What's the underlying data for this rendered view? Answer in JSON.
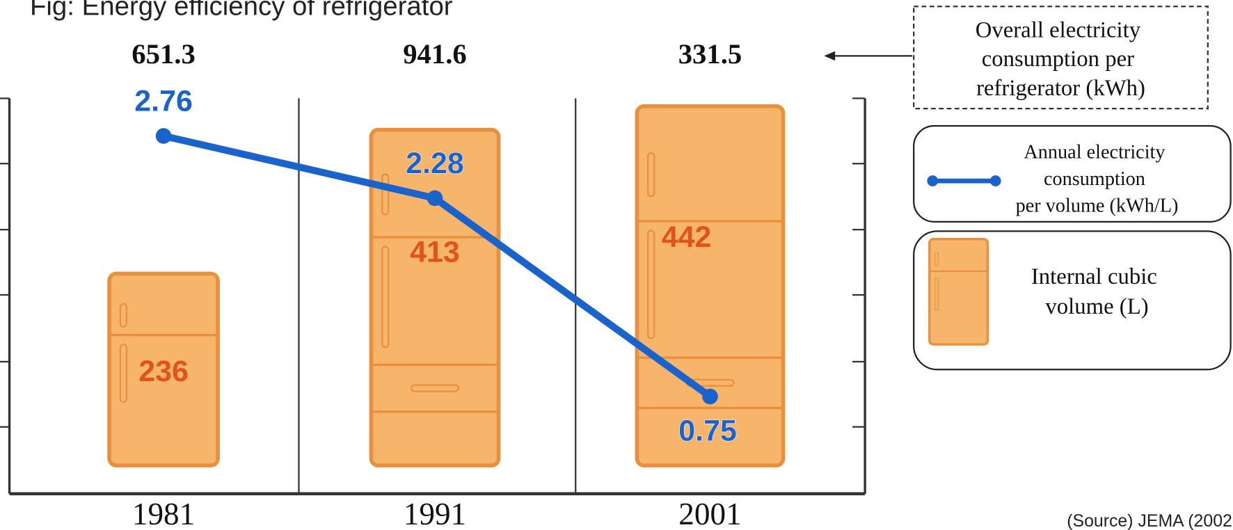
{
  "chart_data": {
    "type": "line",
    "title": "Fig: Energy efficiency of refrigerator",
    "categories": [
      "1981",
      "1991",
      "2001"
    ],
    "series": [
      {
        "name": "Annual electricity consumption per volume (kWh/L)",
        "color": "#1a62cc",
        "values": [
          2.76,
          2.28,
          0.75
        ]
      }
    ],
    "volumes": {
      "name": "Internal cubic volume (L)",
      "color": "#f7b56c",
      "values": [
        236,
        413,
        442
      ]
    },
    "totals": {
      "name": "Overall electricity consumption per refrigerator (kWh)",
      "values": [
        651.3,
        941.6,
        331.5
      ]
    },
    "ylim": [
      0,
      3.05
    ],
    "source": "(Source) JEMA (2002"
  }
}
